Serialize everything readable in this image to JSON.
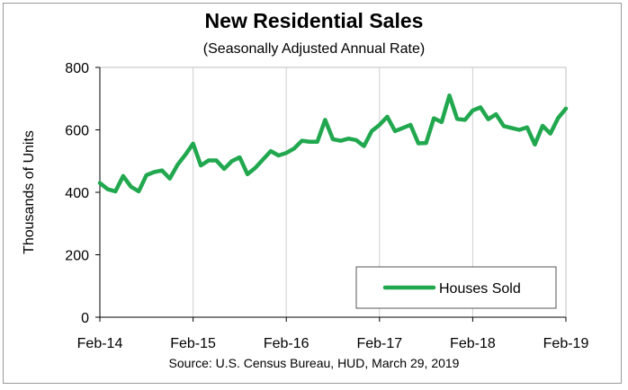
{
  "chart_data": {
    "type": "line",
    "title": "New Residential Sales",
    "subtitle": "(Seasonally Adjusted Annual Rate)",
    "source": "Source:  U.S. Census Bureau, HUD, March 29, 2019",
    "ylabel": "Thousands of Units",
    "xlabel": "",
    "ylim": [
      0,
      800
    ],
    "y_ticks": [
      0,
      200,
      400,
      600,
      800
    ],
    "x_ticks": [
      "Feb-14",
      "Feb-15",
      "Feb-16",
      "Feb-17",
      "Feb-18",
      "Feb-19"
    ],
    "grid": "vertical",
    "legend_position": "bottom-right",
    "series": [
      {
        "name": "Houses Sold",
        "color": "#21a84f",
        "x": [
          "Feb-14",
          "Mar-14",
          "Apr-14",
          "May-14",
          "Jun-14",
          "Jul-14",
          "Aug-14",
          "Sep-14",
          "Oct-14",
          "Nov-14",
          "Dec-14",
          "Jan-15",
          "Feb-15",
          "Mar-15",
          "Apr-15",
          "May-15",
          "Jun-15",
          "Jul-15",
          "Aug-15",
          "Sep-15",
          "Oct-15",
          "Nov-15",
          "Dec-15",
          "Jan-16",
          "Feb-16",
          "Mar-16",
          "Apr-16",
          "May-16",
          "Jun-16",
          "Jul-16",
          "Aug-16",
          "Sep-16",
          "Oct-16",
          "Nov-16",
          "Dec-16",
          "Jan-17",
          "Feb-17",
          "Mar-17",
          "Apr-17",
          "May-17",
          "Jun-17",
          "Jul-17",
          "Aug-17",
          "Sep-17",
          "Oct-17",
          "Nov-17",
          "Dec-17",
          "Jan-18",
          "Feb-18",
          "Mar-18",
          "Apr-18",
          "May-18",
          "Jun-18",
          "Jul-18",
          "Aug-18",
          "Sep-18",
          "Oct-18",
          "Nov-18",
          "Dec-18",
          "Jan-19",
          "Feb-19"
        ],
        "values": [
          430,
          410,
          403,
          452,
          418,
          403,
          455,
          465,
          470,
          444,
          488,
          520,
          556,
          486,
          502,
          502,
          475,
          500,
          512,
          458,
          478,
          505,
          532,
          518,
          526,
          540,
          565,
          562,
          562,
          632,
          570,
          565,
          572,
          567,
          548,
          596,
          616,
          642,
          596,
          606,
          616,
          557,
          558,
          637,
          625,
          710,
          635,
          632,
          662,
          672,
          634,
          650,
          612,
          606,
          600,
          608,
          553,
          613,
          588,
          638,
          668
        ]
      }
    ]
  }
}
